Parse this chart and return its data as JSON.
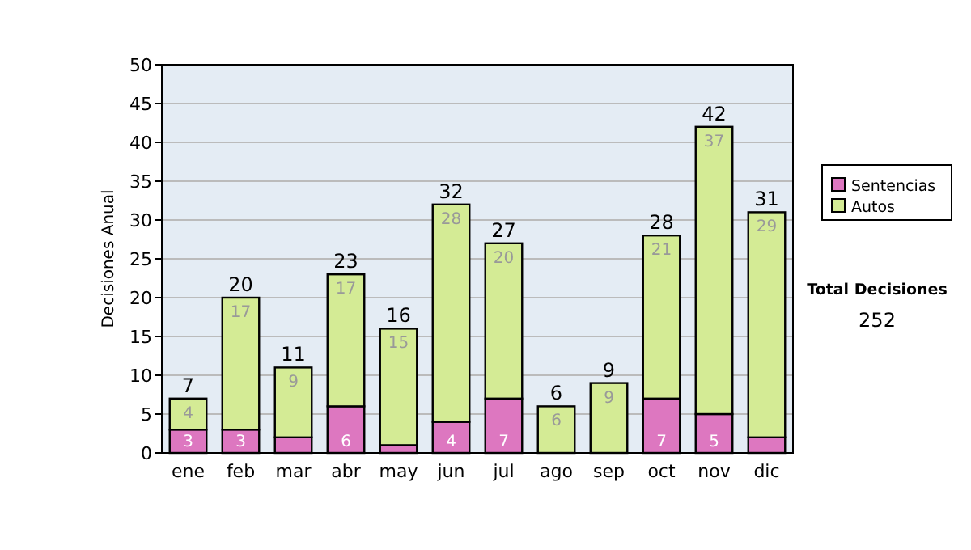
{
  "chart_data": {
    "type": "bar",
    "stacked": true,
    "ylabel": "Decisiones Anual",
    "categories": [
      "ene",
      "feb",
      "mar",
      "abr",
      "may",
      "jun",
      "jul",
      "ago",
      "sep",
      "oct",
      "nov",
      "dic"
    ],
    "series": [
      {
        "name": "Sentencias",
        "color": "#dd77c0",
        "values": [
          3,
          3,
          2,
          6,
          1,
          4,
          7,
          0,
          0,
          7,
          5,
          2
        ],
        "value_labels": [
          "3",
          "3",
          null,
          "6",
          null,
          "4",
          "7",
          null,
          null,
          "7",
          "5",
          null
        ]
      },
      {
        "name": "Autos",
        "color": "#d4eb95",
        "values": [
          4,
          17,
          9,
          17,
          15,
          28,
          20,
          6,
          9,
          21,
          37,
          29
        ],
        "value_labels": [
          "4",
          "17",
          "9",
          "17",
          "15",
          "28",
          "20",
          "6",
          "9",
          "21",
          "37",
          "29"
        ]
      }
    ],
    "totals": [
      "7",
      "20",
      "11",
      "23",
      "16",
      "32",
      "27",
      "6",
      "9",
      "28",
      "42",
      "31"
    ],
    "ylim": [
      0,
      50
    ],
    "yticks": [
      0,
      5,
      10,
      15,
      20,
      25,
      30,
      35,
      40,
      45,
      50
    ],
    "grid": "y",
    "legend": "right",
    "annotations": [
      "Total Decisiones",
      "252"
    ]
  }
}
